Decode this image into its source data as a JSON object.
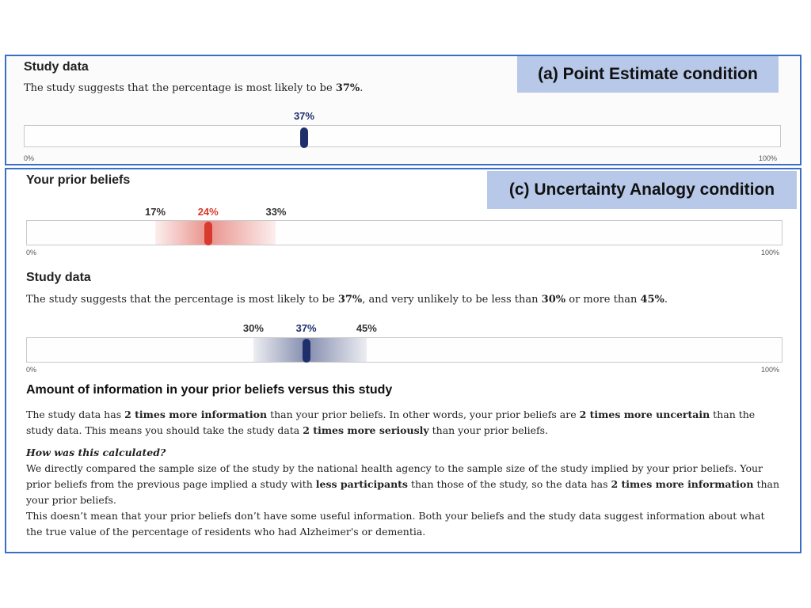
{
  "panel_a": {
    "condition_label": "(a) Point Estimate condition",
    "study": {
      "heading": "Study data",
      "sentence_prefix": "The study suggests that the percentage is most likely to be ",
      "sentence_value": "37%",
      "sentence_suffix": ".",
      "point_label": "37%",
      "point_value": 37,
      "axis_min_label": "0%",
      "axis_max_label": "100%"
    }
  },
  "panel_c": {
    "condition_label": "(c) Uncertainty Analogy condition",
    "prior": {
      "heading": "Your prior beliefs",
      "low_label": "17%",
      "point_label": "24%",
      "high_label": "33%",
      "low_value": 17,
      "point_value": 24,
      "high_value": 33,
      "axis_min_label": "0%",
      "axis_max_label": "100%",
      "color": "#d93a2e"
    },
    "study": {
      "heading": "Study data",
      "sentence_prefix": "The study suggests that the percentage is most likely to be ",
      "sentence_value": "37%",
      "sentence_mid": ", and very unlikely to be less than ",
      "sentence_low": "30%",
      "sentence_or": " or more than ",
      "sentence_high": "45%",
      "sentence_suffix": ".",
      "low_label": "30%",
      "point_label": "37%",
      "high_label": "45%",
      "low_value": 30,
      "point_value": 37,
      "high_value": 45,
      "axis_min_label": "0%",
      "axis_max_label": "100%",
      "color": "#1f2f6b"
    },
    "info": {
      "title": "Amount of information in your prior beliefs versus this study",
      "p1": [
        "The study data has ",
        "2 times more information",
        " than your prior beliefs. In other words, your prior beliefs are ",
        "2 times more uncertain",
        " than the study data. This means you should take the study data ",
        "2 times more seriously",
        " than your prior beliefs."
      ],
      "question": "How was this calculated?",
      "p2": [
        "We directly compared the sample size of the study by the national health agency to the sample size of the study implied by your prior beliefs. Your prior beliefs from the previous page implied a study with ",
        "less participants",
        " than those of the study, so the data has ",
        "2 times more information",
        " than your prior beliefs."
      ],
      "p3": "This doesn’t mean that your prior beliefs don’t have some useful information. Both your beliefs and the study data suggest information about what the true value of the percentage of residents who had Alzheimer's or dementia."
    }
  }
}
